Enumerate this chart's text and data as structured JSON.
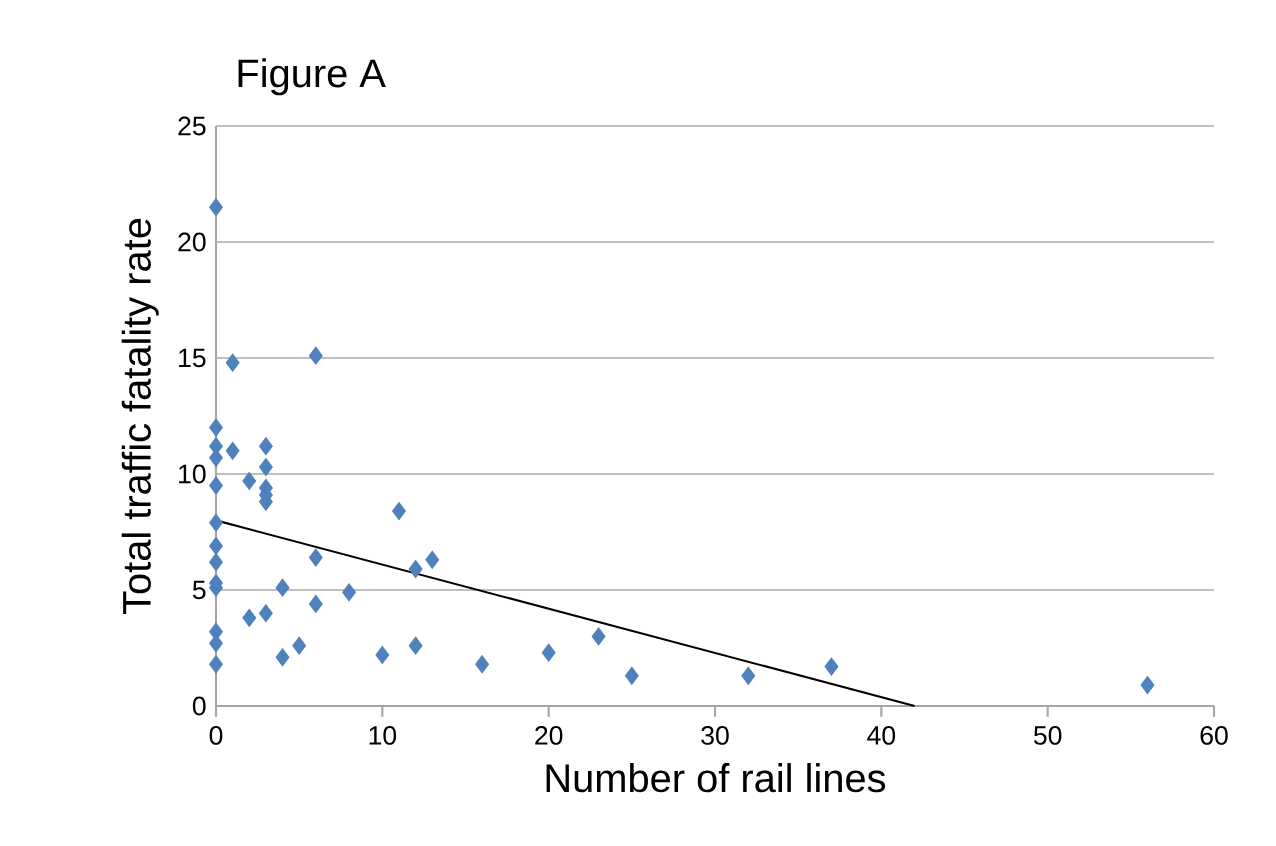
{
  "chart_data": {
    "type": "scatter",
    "title": "Figure  A",
    "xlabel": "Number of rail lines",
    "ylabel": "Total traffic fatality rate",
    "xlim": [
      0,
      60
    ],
    "ylim": [
      0,
      25
    ],
    "xticks": [
      0,
      10,
      20,
      30,
      40,
      50,
      60
    ],
    "yticks": [
      0,
      5,
      10,
      15,
      20,
      25
    ],
    "grid": "y",
    "series": [
      {
        "color": "#4f81bd",
        "marker": "diamond",
        "x": [
          0,
          1,
          6,
          0,
          0,
          1,
          3,
          0,
          3,
          0,
          2,
          3,
          3,
          3,
          0,
          11,
          0,
          0,
          6,
          13,
          12,
          0,
          0,
          4,
          8,
          6,
          3,
          2,
          0,
          0,
          5,
          12,
          23,
          4,
          10,
          20,
          0,
          16,
          37,
          25,
          32,
          56
        ],
        "values": [
          21.5,
          14.8,
          15.1,
          12,
          11.2,
          11,
          11.2,
          10.7,
          10.3,
          9.5,
          9.7,
          9.4,
          9.1,
          8.8,
          7.9,
          8.4,
          6.9,
          6.2,
          6.4,
          6.3,
          5.9,
          5.3,
          5.1,
          5.1,
          4.9,
          4.4,
          4.0,
          3.8,
          3.2,
          2.7,
          2.6,
          2.6,
          3.0,
          2.1,
          2.2,
          2.3,
          1.8,
          1.8,
          1.7,
          1.3,
          1.3,
          0.9
        ]
      },
      {
        "type": "line",
        "marker": "none",
        "color": "#000000",
        "x": [
          0,
          42
        ],
        "values": [
          8.0,
          0
        ]
      }
    ]
  }
}
